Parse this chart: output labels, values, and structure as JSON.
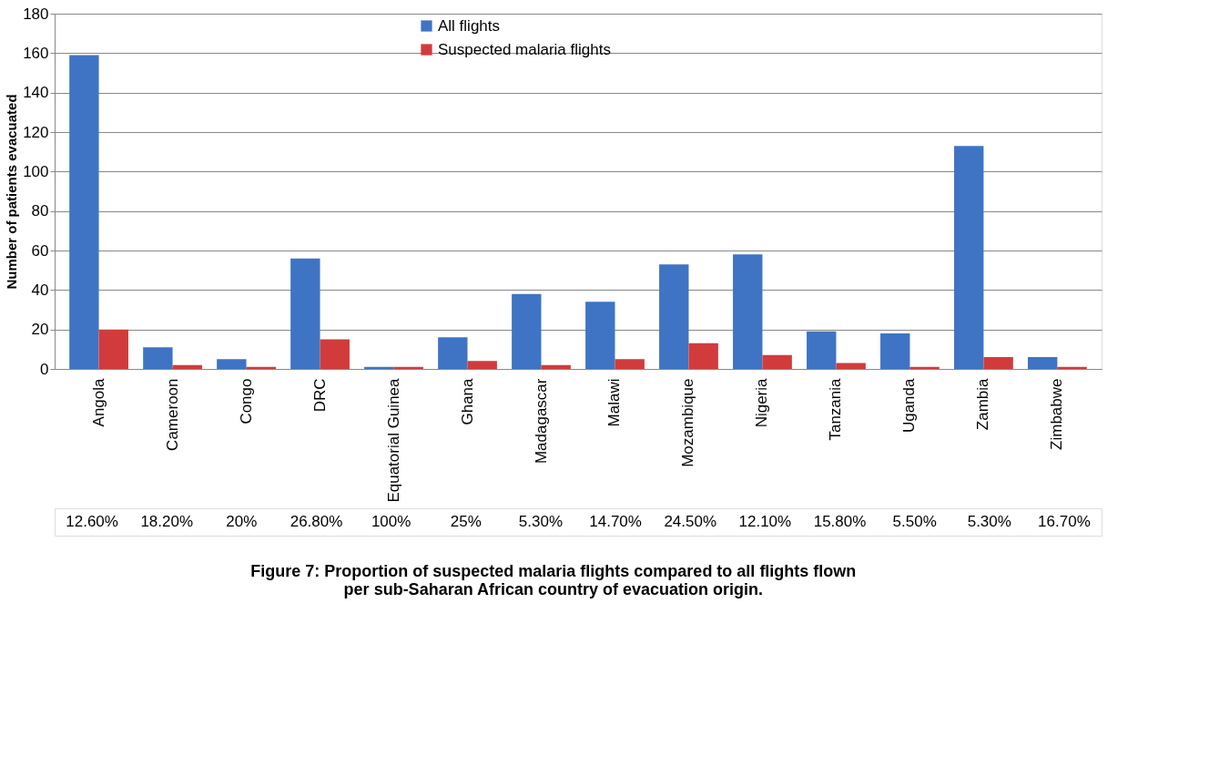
{
  "chart_data": {
    "type": "bar",
    "title": "Figure 7: Proportion of suspected malaria flights compared to all flights flown per sub-Saharan African country of evacuation origin.",
    "ylabel": "Number of patients evacuated",
    "categories": [
      "Angola",
      "Cameroon",
      "Congo",
      "DRC",
      "Equatorial Guinea",
      "Ghana",
      "Madagascar",
      "Malawi",
      "Mozambique",
      "Nigeria",
      "Tanzania",
      "Uganda",
      "Zambia",
      "Zimbabwe"
    ],
    "series": [
      {
        "name": "All flights",
        "color": "#3f74c4",
        "values": [
          159,
          11,
          5,
          56,
          1,
          16,
          38,
          34,
          53,
          58,
          19,
          18,
          113,
          6
        ]
      },
      {
        "name": "Suspected malaria flights",
        "color": "#d13b3b",
        "values": [
          20,
          2,
          1,
          15,
          1,
          4,
          2,
          5,
          13,
          7,
          3,
          1,
          6,
          1
        ]
      }
    ],
    "annotations": [
      "12.60%",
      "18.20%",
      "20%",
      "26.80%",
      "100%",
      "25%",
      "5.30%",
      "14.70%",
      "24.50%",
      "12.10%",
      "15.80%",
      "5.50%",
      "5.30%",
      "16.70%"
    ],
    "ylim": [
      0,
      180
    ],
    "yticks": [
      0,
      20,
      40,
      60,
      80,
      100,
      120,
      140,
      160,
      180
    ],
    "grid": "y",
    "legend": "top"
  }
}
